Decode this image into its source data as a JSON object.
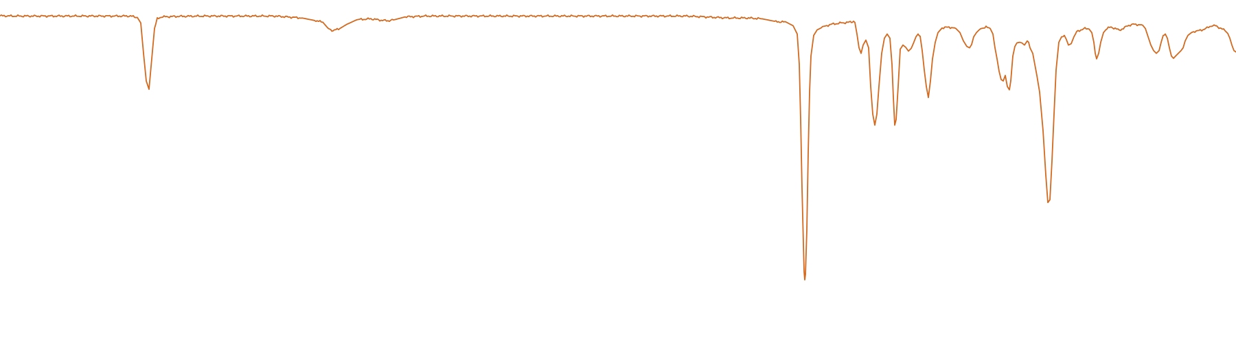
{
  "chart_data": {
    "type": "line",
    "title": "",
    "xlabel": "",
    "ylabel": "",
    "xlim": [
      0,
      1800
    ],
    "ylim": [
      0,
      1
    ],
    "grid": false,
    "legend": "none",
    "colors": {
      "line": "#d2691e",
      "background": "#ffffff"
    },
    "series": [
      {
        "points": [
          [
            0,
            0.976
          ],
          [
            20,
            0.975
          ],
          [
            60,
            0.975
          ],
          [
            100,
            0.975
          ],
          [
            150,
            0.975
          ],
          [
            190,
            0.975
          ],
          [
            200,
            0.97
          ],
          [
            205,
            0.95
          ],
          [
            209,
            0.84
          ],
          [
            213,
            0.74
          ],
          [
            217,
            0.71
          ],
          [
            221,
            0.82
          ],
          [
            225,
            0.93
          ],
          [
            229,
            0.965
          ],
          [
            235,
            0.972
          ],
          [
            260,
            0.974
          ],
          [
            300,
            0.975
          ],
          [
            350,
            0.975
          ],
          [
            400,
            0.975
          ],
          [
            440,
            0.968
          ],
          [
            460,
            0.958
          ],
          [
            470,
            0.953
          ],
          [
            478,
            0.93
          ],
          [
            485,
            0.922
          ],
          [
            495,
            0.93
          ],
          [
            505,
            0.945
          ],
          [
            520,
            0.962
          ],
          [
            540,
            0.965
          ],
          [
            555,
            0.96
          ],
          [
            565,
            0.958
          ],
          [
            575,
            0.962
          ],
          [
            590,
            0.972
          ],
          [
            620,
            0.975
          ],
          [
            700,
            0.975
          ],
          [
            800,
            0.975
          ],
          [
            900,
            0.975
          ],
          [
            1000,
            0.975
          ],
          [
            1060,
            0.968
          ],
          [
            1090,
            0.968
          ],
          [
            1110,
            0.965
          ],
          [
            1130,
            0.955
          ],
          [
            1145,
            0.953
          ],
          [
            1155,
            0.94
          ],
          [
            1161,
            0.91
          ],
          [
            1164,
            0.8
          ],
          [
            1166,
            0.6
          ],
          [
            1168,
            0.35
          ],
          [
            1170,
            0.15
          ],
          [
            1171,
            0.05
          ],
          [
            1172,
            0.02
          ],
          [
            1173,
            0.04
          ],
          [
            1175,
            0.2
          ],
          [
            1177,
            0.48
          ],
          [
            1179,
            0.7
          ],
          [
            1181,
            0.83
          ],
          [
            1185,
            0.905
          ],
          [
            1190,
            0.925
          ],
          [
            1198,
            0.935
          ],
          [
            1210,
            0.945
          ],
          [
            1225,
            0.95
          ],
          [
            1235,
            0.952
          ],
          [
            1240,
            0.954
          ],
          [
            1243,
            0.956
          ],
          [
            1245,
            0.952
          ],
          [
            1248,
            0.91
          ],
          [
            1251,
            0.86
          ],
          [
            1254,
            0.84
          ],
          [
            1257,
            0.87
          ],
          [
            1261,
            0.888
          ],
          [
            1265,
            0.86
          ],
          [
            1268,
            0.72
          ],
          [
            1271,
            0.62
          ],
          [
            1274,
            0.58
          ],
          [
            1277,
            0.62
          ],
          [
            1280,
            0.72
          ],
          [
            1284,
            0.84
          ],
          [
            1288,
            0.895
          ],
          [
            1292,
            0.91
          ],
          [
            1296,
            0.895
          ],
          [
            1299,
            0.8
          ],
          [
            1301,
            0.68
          ],
          [
            1303,
            0.58
          ],
          [
            1305,
            0.6
          ],
          [
            1308,
            0.72
          ],
          [
            1311,
            0.855
          ],
          [
            1315,
            0.87
          ],
          [
            1319,
            0.862
          ],
          [
            1323,
            0.848
          ],
          [
            1327,
            0.858
          ],
          [
            1330,
            0.875
          ],
          [
            1334,
            0.9
          ],
          [
            1337,
            0.91
          ],
          [
            1340,
            0.902
          ],
          [
            1343,
            0.85
          ],
          [
            1346,
            0.78
          ],
          [
            1349,
            0.72
          ],
          [
            1352,
            0.68
          ],
          [
            1355,
            0.74
          ],
          [
            1358,
            0.82
          ],
          [
            1362,
            0.88
          ],
          [
            1366,
            0.915
          ],
          [
            1372,
            0.932
          ],
          [
            1382,
            0.935
          ],
          [
            1392,
            0.93
          ],
          [
            1398,
            0.915
          ],
          [
            1403,
            0.885
          ],
          [
            1408,
            0.865
          ],
          [
            1412,
            0.86
          ],
          [
            1415,
            0.872
          ],
          [
            1418,
            0.9
          ],
          [
            1422,
            0.915
          ],
          [
            1428,
            0.93
          ],
          [
            1436,
            0.935
          ],
          [
            1442,
            0.93
          ],
          [
            1446,
            0.91
          ],
          [
            1449,
            0.86
          ],
          [
            1452,
            0.82
          ],
          [
            1455,
            0.775
          ],
          [
            1458,
            0.745
          ],
          [
            1461,
            0.74
          ],
          [
            1464,
            0.76
          ],
          [
            1467,
            0.72
          ],
          [
            1470,
            0.708
          ],
          [
            1472,
            0.74
          ],
          [
            1475,
            0.83
          ],
          [
            1478,
            0.865
          ],
          [
            1481,
            0.878
          ],
          [
            1485,
            0.88
          ],
          [
            1488,
            0.878
          ],
          [
            1492,
            0.87
          ],
          [
            1496,
            0.885
          ],
          [
            1498,
            0.88
          ],
          [
            1500,
            0.86
          ],
          [
            1504,
            0.84
          ],
          [
            1507,
            0.8
          ],
          [
            1510,
            0.76
          ],
          [
            1514,
            0.7
          ],
          [
            1519,
            0.56
          ],
          [
            1523,
            0.4
          ],
          [
            1526,
            0.3
          ],
          [
            1529,
            0.31
          ],
          [
            1532,
            0.45
          ],
          [
            1535,
            0.62
          ],
          [
            1538,
            0.78
          ],
          [
            1542,
            0.88
          ],
          [
            1546,
            0.9
          ],
          [
            1550,
            0.905
          ],
          [
            1553,
            0.89
          ],
          [
            1556,
            0.87
          ],
          [
            1560,
            0.875
          ],
          [
            1564,
            0.9
          ],
          [
            1568,
            0.918
          ],
          [
            1574,
            0.925
          ],
          [
            1580,
            0.93
          ],
          [
            1586,
            0.928
          ],
          [
            1590,
            0.915
          ],
          [
            1593,
            0.88
          ],
          [
            1595,
            0.84
          ],
          [
            1597,
            0.82
          ],
          [
            1600,
            0.84
          ],
          [
            1603,
            0.88
          ],
          [
            1607,
            0.915
          ],
          [
            1612,
            0.93
          ],
          [
            1618,
            0.935
          ],
          [
            1624,
            0.93
          ],
          [
            1630,
            0.924
          ],
          [
            1636,
            0.93
          ],
          [
            1642,
            0.94
          ],
          [
            1650,
            0.945
          ],
          [
            1658,
            0.944
          ],
          [
            1664,
            0.942
          ],
          [
            1668,
            0.93
          ],
          [
            1672,
            0.9
          ],
          [
            1676,
            0.87
          ],
          [
            1680,
            0.85
          ],
          [
            1684,
            0.84
          ],
          [
            1688,
            0.85
          ],
          [
            1691,
            0.88
          ],
          [
            1694,
            0.905
          ],
          [
            1697,
            0.91
          ],
          [
            1700,
            0.895
          ],
          [
            1703,
            0.86
          ],
          [
            1706,
            0.83
          ],
          [
            1709,
            0.822
          ],
          [
            1712,
            0.83
          ],
          [
            1716,
            0.84
          ],
          [
            1720,
            0.85
          ],
          [
            1723,
            0.86
          ],
          [
            1726,
            0.885
          ],
          [
            1730,
            0.905
          ],
          [
            1735,
            0.915
          ],
          [
            1740,
            0.92
          ],
          [
            1746,
            0.922
          ],
          [
            1752,
            0.926
          ],
          [
            1758,
            0.932
          ],
          [
            1764,
            0.94
          ],
          [
            1770,
            0.94
          ],
          [
            1775,
            0.934
          ],
          [
            1780,
            0.928
          ],
          [
            1784,
            0.922
          ],
          [
            1788,
            0.912
          ],
          [
            1791,
            0.895
          ],
          [
            1794,
            0.87
          ],
          [
            1797,
            0.85
          ],
          [
            1800,
            0.845
          ]
        ]
      }
    ]
  }
}
